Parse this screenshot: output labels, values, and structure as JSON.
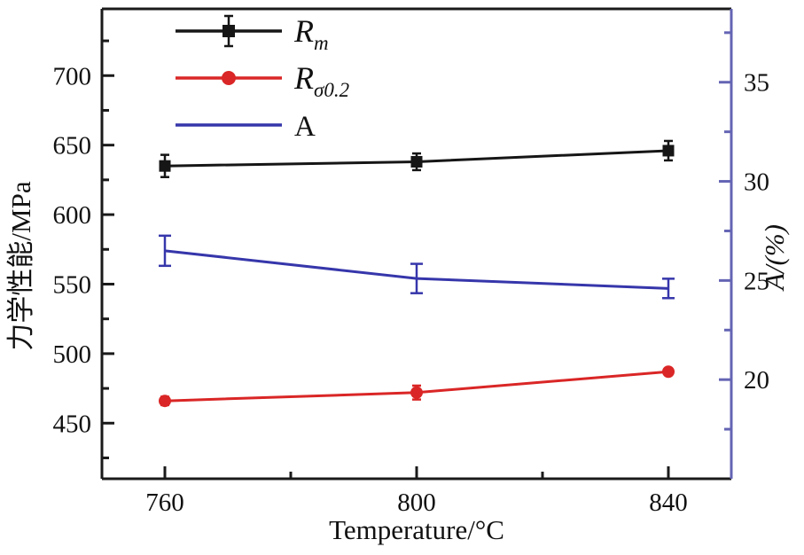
{
  "chart_data": {
    "type": "line",
    "title": "",
    "xlabel": "Temperature/°C",
    "x": [
      760,
      800,
      840
    ],
    "x_range": [
      750,
      850
    ],
    "x_ticks_major": [
      760,
      800,
      840
    ],
    "x_ticks_minor": [
      780,
      820
    ],
    "grid": false,
    "legend_position": "top-left",
    "left_axis": {
      "label": "力学性能/MPa",
      "range": [
        410,
        748
      ],
      "ticks_major": [
        450,
        500,
        550,
        600,
        650,
        700
      ],
      "ticks_minor": [
        425,
        475,
        525,
        575,
        625,
        675,
        725
      ],
      "color": "#1a1a1a"
    },
    "right_axis": {
      "label": "A/(%)",
      "range": [
        15,
        38.7
      ],
      "ticks_major": [
        20,
        25,
        30,
        35
      ],
      "ticks_minor": [
        17.5,
        22.5,
        27.5,
        32.5,
        37.5
      ],
      "color": "#6464b4"
    },
    "series": [
      {
        "name": "Rm",
        "legend_main": "R",
        "legend_sub": "m",
        "axis": "left",
        "color": "#161616",
        "marker": "square",
        "legend_errorbar": true,
        "values": [
          635,
          638,
          646
        ],
        "errors": [
          8,
          6,
          7
        ]
      },
      {
        "name": "Rsigma0.2",
        "legend_main": "R",
        "legend_sub": "σ0.2",
        "axis": "left",
        "color": "#da2626",
        "marker": "circle",
        "legend_errorbar": false,
        "values": [
          466,
          472,
          487
        ],
        "errors": [
          3,
          5,
          2
        ]
      },
      {
        "name": "A",
        "legend_main": "A",
        "legend_sub": "",
        "axis": "right",
        "color": "#3636ab",
        "marker": "none",
        "legend_errorbar": false,
        "values": [
          26.5,
          25.1,
          24.6
        ],
        "errors": [
          0.76,
          0.74,
          0.49
        ]
      }
    ]
  }
}
